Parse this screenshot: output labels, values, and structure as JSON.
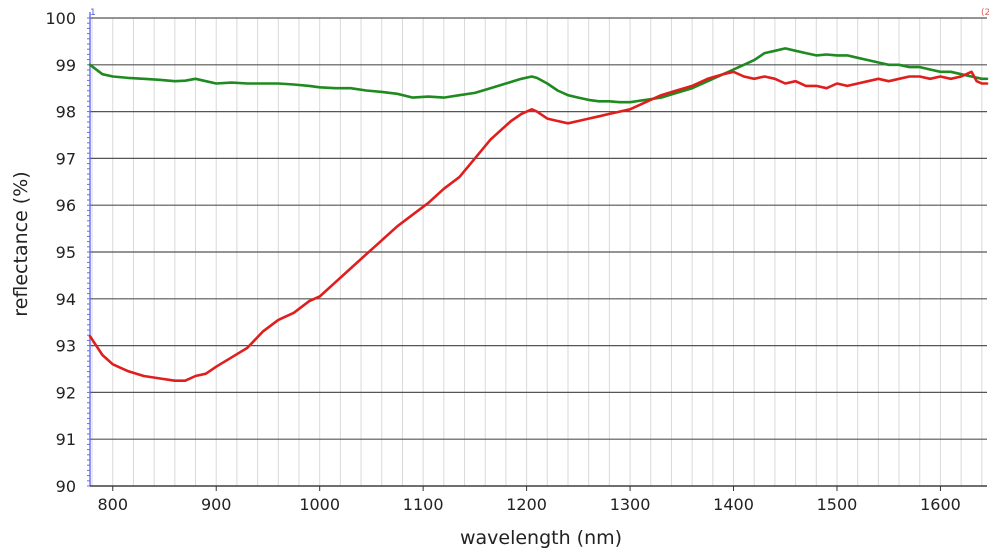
{
  "chart_data": {
    "type": "line",
    "title": "",
    "xlabel": "wavelength (nm)",
    "ylabel": "reflectance (%)",
    "xlim": [
      778,
      1645
    ],
    "ylim": [
      90,
      100
    ],
    "x_ticks": [
      "800",
      "900",
      "1000",
      "1100",
      "1200",
      "1300",
      "1400",
      "1500",
      "1600"
    ],
    "y_ticks": [
      "90",
      "91",
      "92",
      "93",
      "94",
      "95",
      "96",
      "97",
      "98",
      "99",
      "100"
    ],
    "grid": true,
    "legend": "none",
    "corner_markers": {
      "left": "1",
      "right": "(2"
    },
    "colors": {
      "series_red": "#e01e1e",
      "series_green": "#1f8a1f",
      "marker_left": "#4b5bd6",
      "marker_right": "#e06060"
    },
    "series": [
      {
        "color": "red",
        "x": [
          778,
          790,
          800,
          815,
          830,
          845,
          860,
          870,
          880,
          890,
          900,
          915,
          930,
          945,
          960,
          975,
          990,
          1000,
          1015,
          1030,
          1045,
          1060,
          1075,
          1090,
          1105,
          1120,
          1135,
          1150,
          1165,
          1175,
          1185,
          1195,
          1205,
          1210,
          1220,
          1230,
          1240,
          1250,
          1260,
          1270,
          1280,
          1290,
          1300,
          1315,
          1330,
          1345,
          1360,
          1375,
          1390,
          1400,
          1410,
          1420,
          1430,
          1440,
          1450,
          1460,
          1470,
          1480,
          1490,
          1500,
          1510,
          1520,
          1530,
          1540,
          1550,
          1560,
          1570,
          1580,
          1590,
          1600,
          1610,
          1620,
          1630,
          1635,
          1640,
          1645
        ],
        "y": [
          93.2,
          92.8,
          92.6,
          92.45,
          92.35,
          92.3,
          92.25,
          92.25,
          92.35,
          92.4,
          92.55,
          92.75,
          92.95,
          93.3,
          93.55,
          93.7,
          93.95,
          94.05,
          94.35,
          94.65,
          94.95,
          95.25,
          95.55,
          95.8,
          96.05,
          96.35,
          96.6,
          97.0,
          97.4,
          97.6,
          97.8,
          97.95,
          98.05,
          98.0,
          97.85,
          97.8,
          97.75,
          97.8,
          97.85,
          97.9,
          97.95,
          98.0,
          98.05,
          98.2,
          98.35,
          98.45,
          98.55,
          98.7,
          98.8,
          98.85,
          98.75,
          98.7,
          98.75,
          98.7,
          98.6,
          98.65,
          98.55,
          98.55,
          98.5,
          98.6,
          98.55,
          98.6,
          98.65,
          98.7,
          98.65,
          98.7,
          98.75,
          98.75,
          98.7,
          98.75,
          98.7,
          98.75,
          98.85,
          98.65,
          98.6,
          98.6
        ]
      },
      {
        "color": "green",
        "x": [
          778,
          790,
          800,
          815,
          830,
          845,
          860,
          870,
          880,
          890,
          900,
          915,
          930,
          945,
          960,
          975,
          990,
          1000,
          1015,
          1030,
          1045,
          1060,
          1075,
          1090,
          1105,
          1120,
          1135,
          1150,
          1165,
          1180,
          1195,
          1205,
          1210,
          1220,
          1230,
          1240,
          1250,
          1260,
          1270,
          1280,
          1290,
          1300,
          1315,
          1330,
          1345,
          1360,
          1375,
          1390,
          1400,
          1410,
          1420,
          1430,
          1440,
          1450,
          1460,
          1470,
          1480,
          1490,
          1500,
          1510,
          1520,
          1530,
          1540,
          1550,
          1560,
          1570,
          1580,
          1590,
          1600,
          1610,
          1620,
          1630,
          1640,
          1645
        ],
        "y": [
          99.0,
          98.8,
          98.75,
          98.72,
          98.7,
          98.68,
          98.65,
          98.66,
          98.7,
          98.65,
          98.6,
          98.62,
          98.6,
          98.6,
          98.6,
          98.58,
          98.55,
          98.52,
          98.5,
          98.5,
          98.45,
          98.42,
          98.38,
          98.3,
          98.32,
          98.3,
          98.35,
          98.4,
          98.5,
          98.6,
          98.7,
          98.75,
          98.72,
          98.6,
          98.45,
          98.35,
          98.3,
          98.25,
          98.22,
          98.22,
          98.2,
          98.2,
          98.25,
          98.3,
          98.4,
          98.5,
          98.65,
          98.8,
          98.9,
          99.0,
          99.1,
          99.25,
          99.3,
          99.35,
          99.3,
          99.25,
          99.2,
          99.22,
          99.2,
          99.2,
          99.15,
          99.1,
          99.05,
          99.0,
          99.0,
          98.95,
          98.95,
          98.9,
          98.85,
          98.85,
          98.8,
          98.75,
          98.7,
          98.7
        ]
      }
    ]
  }
}
